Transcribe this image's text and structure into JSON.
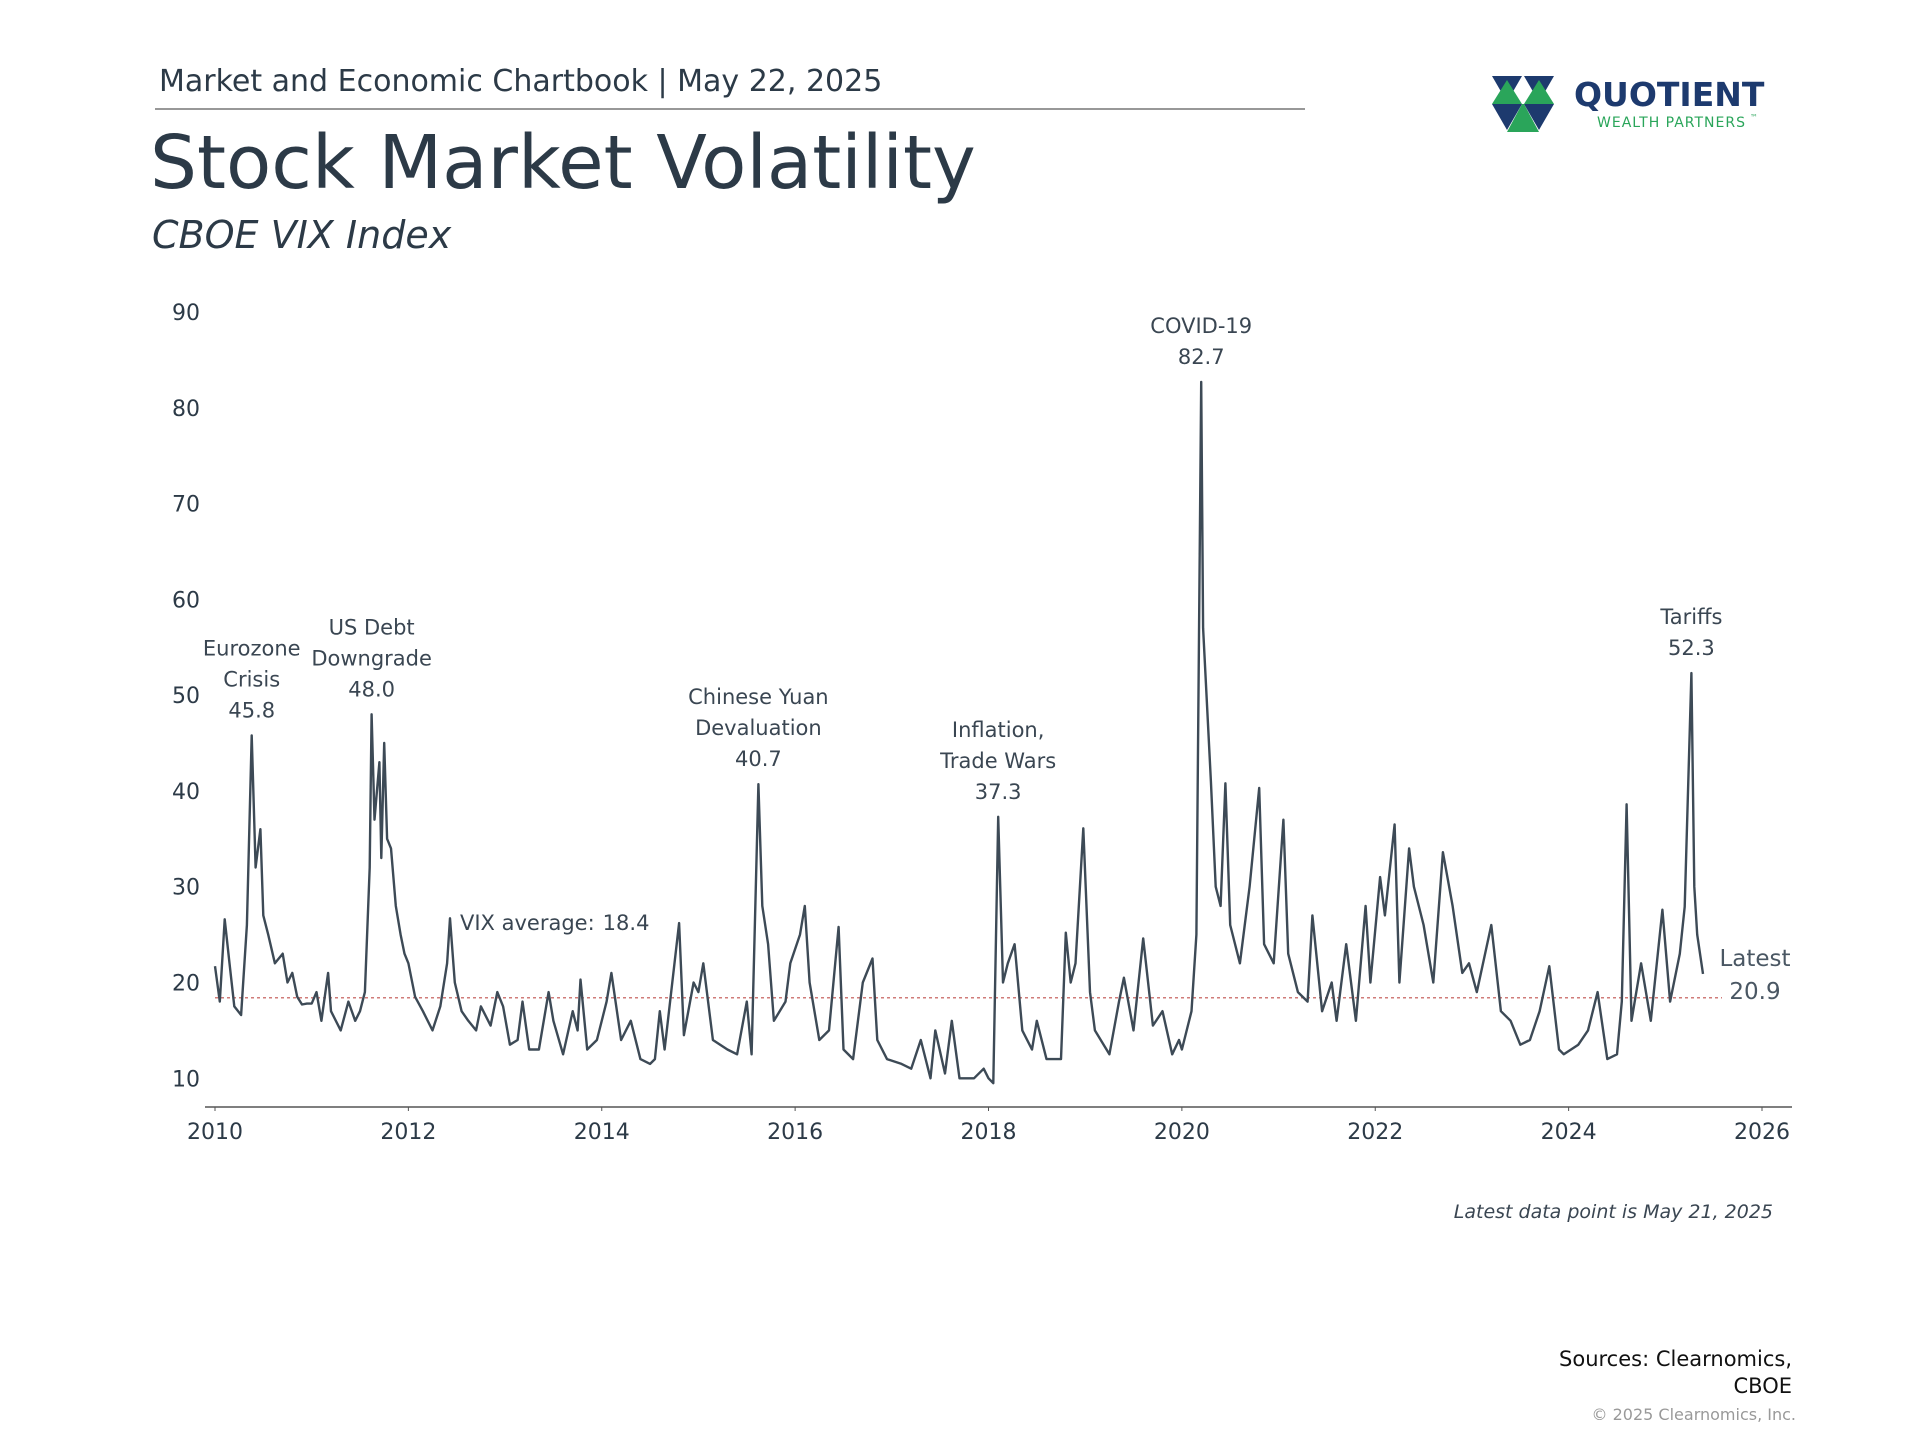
{
  "header": {
    "chartbook": "Market and Economic Chartbook | May 22, 2025",
    "logo_name": "QUOTIENT",
    "logo_tagline": "WEALTH PARTNERS",
    "logo_mark": "™"
  },
  "chart_data": {
    "type": "line",
    "title": "Stock Market Volatility",
    "subtitle": "CBOE VIX Index",
    "xlim": [
      2010,
      2026
    ],
    "xticks": [
      2010,
      2012,
      2014,
      2016,
      2018,
      2020,
      2022,
      2024,
      2026
    ],
    "ylim": [
      7,
      90
    ],
    "yticks": [
      10,
      20,
      30,
      40,
      50,
      60,
      70,
      80,
      90
    ],
    "series": [
      {
        "name": "VIX",
        "color": "#3d4a56",
        "x": [
          2010.0,
          2010.05,
          2010.1,
          2010.15,
          2010.2,
          2010.27,
          2010.33,
          2010.38,
          2010.42,
          2010.47,
          2010.5,
          2010.55,
          2010.62,
          2010.7,
          2010.75,
          2010.8,
          2010.85,
          2010.9,
          2010.95,
          2011.0,
          2011.05,
          2011.1,
          2011.17,
          2011.2,
          2011.3,
          2011.38,
          2011.45,
          2011.5,
          2011.55,
          2011.6,
          2011.62,
          2011.65,
          2011.7,
          2011.72,
          2011.75,
          2011.78,
          2011.82,
          2011.87,
          2011.92,
          2011.96,
          2012.0,
          2012.07,
          2012.15,
          2012.25,
          2012.33,
          2012.4,
          2012.43,
          2012.48,
          2012.55,
          2012.62,
          2012.7,
          2012.75,
          2012.85,
          2012.92,
          2012.98,
          2013.05,
          2013.13,
          2013.18,
          2013.25,
          2013.35,
          2013.45,
          2013.5,
          2013.6,
          2013.7,
          2013.75,
          2013.78,
          2013.85,
          2013.95,
          2014.05,
          2014.1,
          2014.2,
          2014.3,
          2014.4,
          2014.5,
          2014.55,
          2014.6,
          2014.65,
          2014.8,
          2014.85,
          2014.95,
          2015.0,
          2015.05,
          2015.15,
          2015.3,
          2015.4,
          2015.5,
          2015.55,
          2015.62,
          2015.66,
          2015.72,
          2015.78,
          2015.9,
          2015.95,
          2016.05,
          2016.1,
          2016.15,
          2016.25,
          2016.35,
          2016.45,
          2016.5,
          2016.6,
          2016.7,
          2016.8,
          2016.85,
          2016.95,
          2017.1,
          2017.2,
          2017.3,
          2017.4,
          2017.45,
          2017.55,
          2017.62,
          2017.7,
          2017.85,
          2017.95,
          2018.0,
          2018.05,
          2018.1,
          2018.15,
          2018.2,
          2018.27,
          2018.35,
          2018.45,
          2018.5,
          2018.6,
          2018.75,
          2018.8,
          2018.85,
          2018.9,
          2018.98,
          2019.05,
          2019.1,
          2019.25,
          2019.35,
          2019.4,
          2019.5,
          2019.6,
          2019.7,
          2019.8,
          2019.9,
          2019.97,
          2020.0,
          2020.1,
          2020.15,
          2020.2,
          2020.22,
          2020.3,
          2020.35,
          2020.4,
          2020.45,
          2020.5,
          2020.6,
          2020.7,
          2020.8,
          2020.85,
          2020.95,
          2021.05,
          2021.1,
          2021.2,
          2021.3,
          2021.35,
          2021.45,
          2021.55,
          2021.6,
          2021.7,
          2021.8,
          2021.9,
          2021.95,
          2022.05,
          2022.1,
          2022.2,
          2022.25,
          2022.35,
          2022.4,
          2022.5,
          2022.6,
          2022.7,
          2022.8,
          2022.9,
          2022.97,
          2023.05,
          2023.2,
          2023.3,
          2023.4,
          2023.5,
          2023.6,
          2023.7,
          2023.8,
          2023.9,
          2023.95,
          2024.1,
          2024.2,
          2024.3,
          2024.4,
          2024.5,
          2024.55,
          2024.6,
          2024.65,
          2024.75,
          2024.85,
          2024.97,
          2025.05,
          2025.15,
          2025.2,
          2025.27,
          2025.3,
          2025.33,
          2025.39
        ],
        "values": [
          21.7,
          18,
          26.6,
          22,
          17.5,
          16.6,
          26,
          45.8,
          32,
          36,
          27,
          25,
          22,
          23,
          20,
          21,
          18.5,
          17.7,
          17.8,
          17.8,
          19,
          16,
          21,
          17,
          15,
          18,
          16,
          17,
          19,
          32,
          48.0,
          37,
          43,
          33,
          45,
          35,
          34,
          28,
          25,
          23,
          22,
          18.5,
          17,
          15,
          17.5,
          22,
          26.7,
          20,
          17,
          16,
          15,
          17.5,
          15.5,
          19,
          17.5,
          13.5,
          14,
          18,
          13,
          13,
          19,
          16,
          12.5,
          17,
          15,
          20.3,
          13,
          14,
          18,
          21,
          14,
          16,
          12,
          11.5,
          12,
          17,
          13,
          26.2,
          14.5,
          20,
          19,
          22,
          14,
          13,
          12.5,
          18,
          12.5,
          40.7,
          28,
          24,
          16,
          18,
          22,
          25,
          28,
          20,
          14,
          15,
          25.8,
          13,
          12,
          20,
          22.5,
          14,
          12,
          11.5,
          11,
          14,
          10,
          15,
          10.5,
          16,
          10,
          10,
          11,
          10,
          9.5,
          37.3,
          20,
          22,
          24,
          15,
          13,
          16,
          12,
          12,
          25.2,
          20,
          22,
          36.1,
          19,
          15,
          12.5,
          18,
          20.5,
          15,
          24.6,
          15.5,
          17,
          12.5,
          14,
          13,
          17,
          25,
          82.7,
          57,
          41,
          30,
          28,
          40.8,
          26,
          22,
          30,
          40.3,
          24,
          22,
          37,
          23,
          19,
          18,
          27,
          17,
          20,
          16,
          24,
          16,
          28,
          20,
          31,
          27,
          36.5,
          20,
          34,
          30,
          26,
          20,
          33.6,
          28,
          21,
          22,
          19,
          26,
          17,
          16,
          13.5,
          14,
          17,
          21.7,
          13,
          12.5,
          13.5,
          15,
          19,
          12,
          12.5,
          18,
          38.6,
          16,
          22,
          16,
          27.6,
          18,
          23,
          27.9,
          52.3,
          30,
          25,
          20.9
        ]
      }
    ],
    "average": {
      "label": "VIX average:",
      "value": 18.4,
      "color": "#c0504d"
    },
    "latest": {
      "label": "Latest",
      "value": 20.9
    },
    "annotations": [
      {
        "lines": [
          "Eurozone",
          "Crisis"
        ],
        "value": 45.8
      },
      {
        "lines": [
          "US Debt",
          "Downgrade"
        ],
        "value": 48.0,
        "value_label": "48.0"
      },
      {
        "lines": [
          "Chinese Yuan",
          "Devaluation"
        ],
        "value": 40.7
      },
      {
        "lines": [
          "Inflation,",
          "Trade Wars"
        ],
        "value": 37.3
      },
      {
        "lines": [
          "COVID-19"
        ],
        "value": 82.7
      },
      {
        "lines": [
          "Tariffs"
        ],
        "value": 52.3
      }
    ],
    "footnote": "Latest data point is May 21, 2025"
  },
  "footer": {
    "sources": [
      "Sources: Clearnomics,",
      "CBOE"
    ],
    "copyright": "© 2025 Clearnomics, Inc."
  }
}
